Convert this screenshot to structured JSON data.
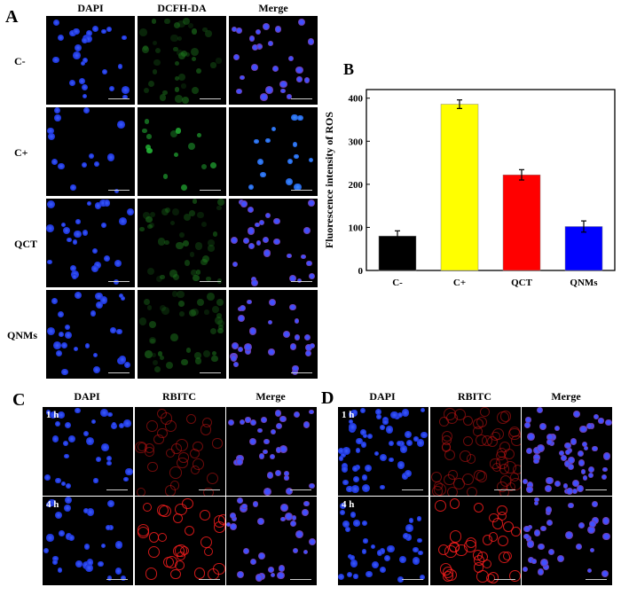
{
  "panel_a": {
    "letter": "A",
    "columns": [
      "DAPI",
      "DCFH-DA",
      "Merge"
    ],
    "rows": [
      "C-",
      "C+",
      "QCT",
      "QNMs"
    ]
  },
  "panel_c": {
    "letter": "C",
    "columns": [
      "DAPI",
      "RBITC",
      "Merge"
    ],
    "rows": [
      "1 h",
      "4 h"
    ]
  },
  "panel_d": {
    "letter": "D",
    "columns": [
      "DAPI",
      "RBITC",
      "Merge"
    ],
    "rows": [
      "1 h",
      "4 h"
    ]
  },
  "chart_data": {
    "type": "bar",
    "title": "B",
    "categories": [
      "C-",
      "C+",
      "QCT",
      "QNMs"
    ],
    "values": [
      80,
      386,
      222,
      102
    ],
    "errors": [
      12,
      10,
      12,
      13
    ],
    "colors": [
      "#000000",
      "#ffff00",
      "#ff0000",
      "#0000ff"
    ],
    "xlabel": "",
    "ylabel": "Fluorescence intensity of ROS",
    "ylim": [
      0,
      420
    ],
    "yticks": [
      0,
      100,
      200,
      300,
      400
    ],
    "grid": false
  }
}
